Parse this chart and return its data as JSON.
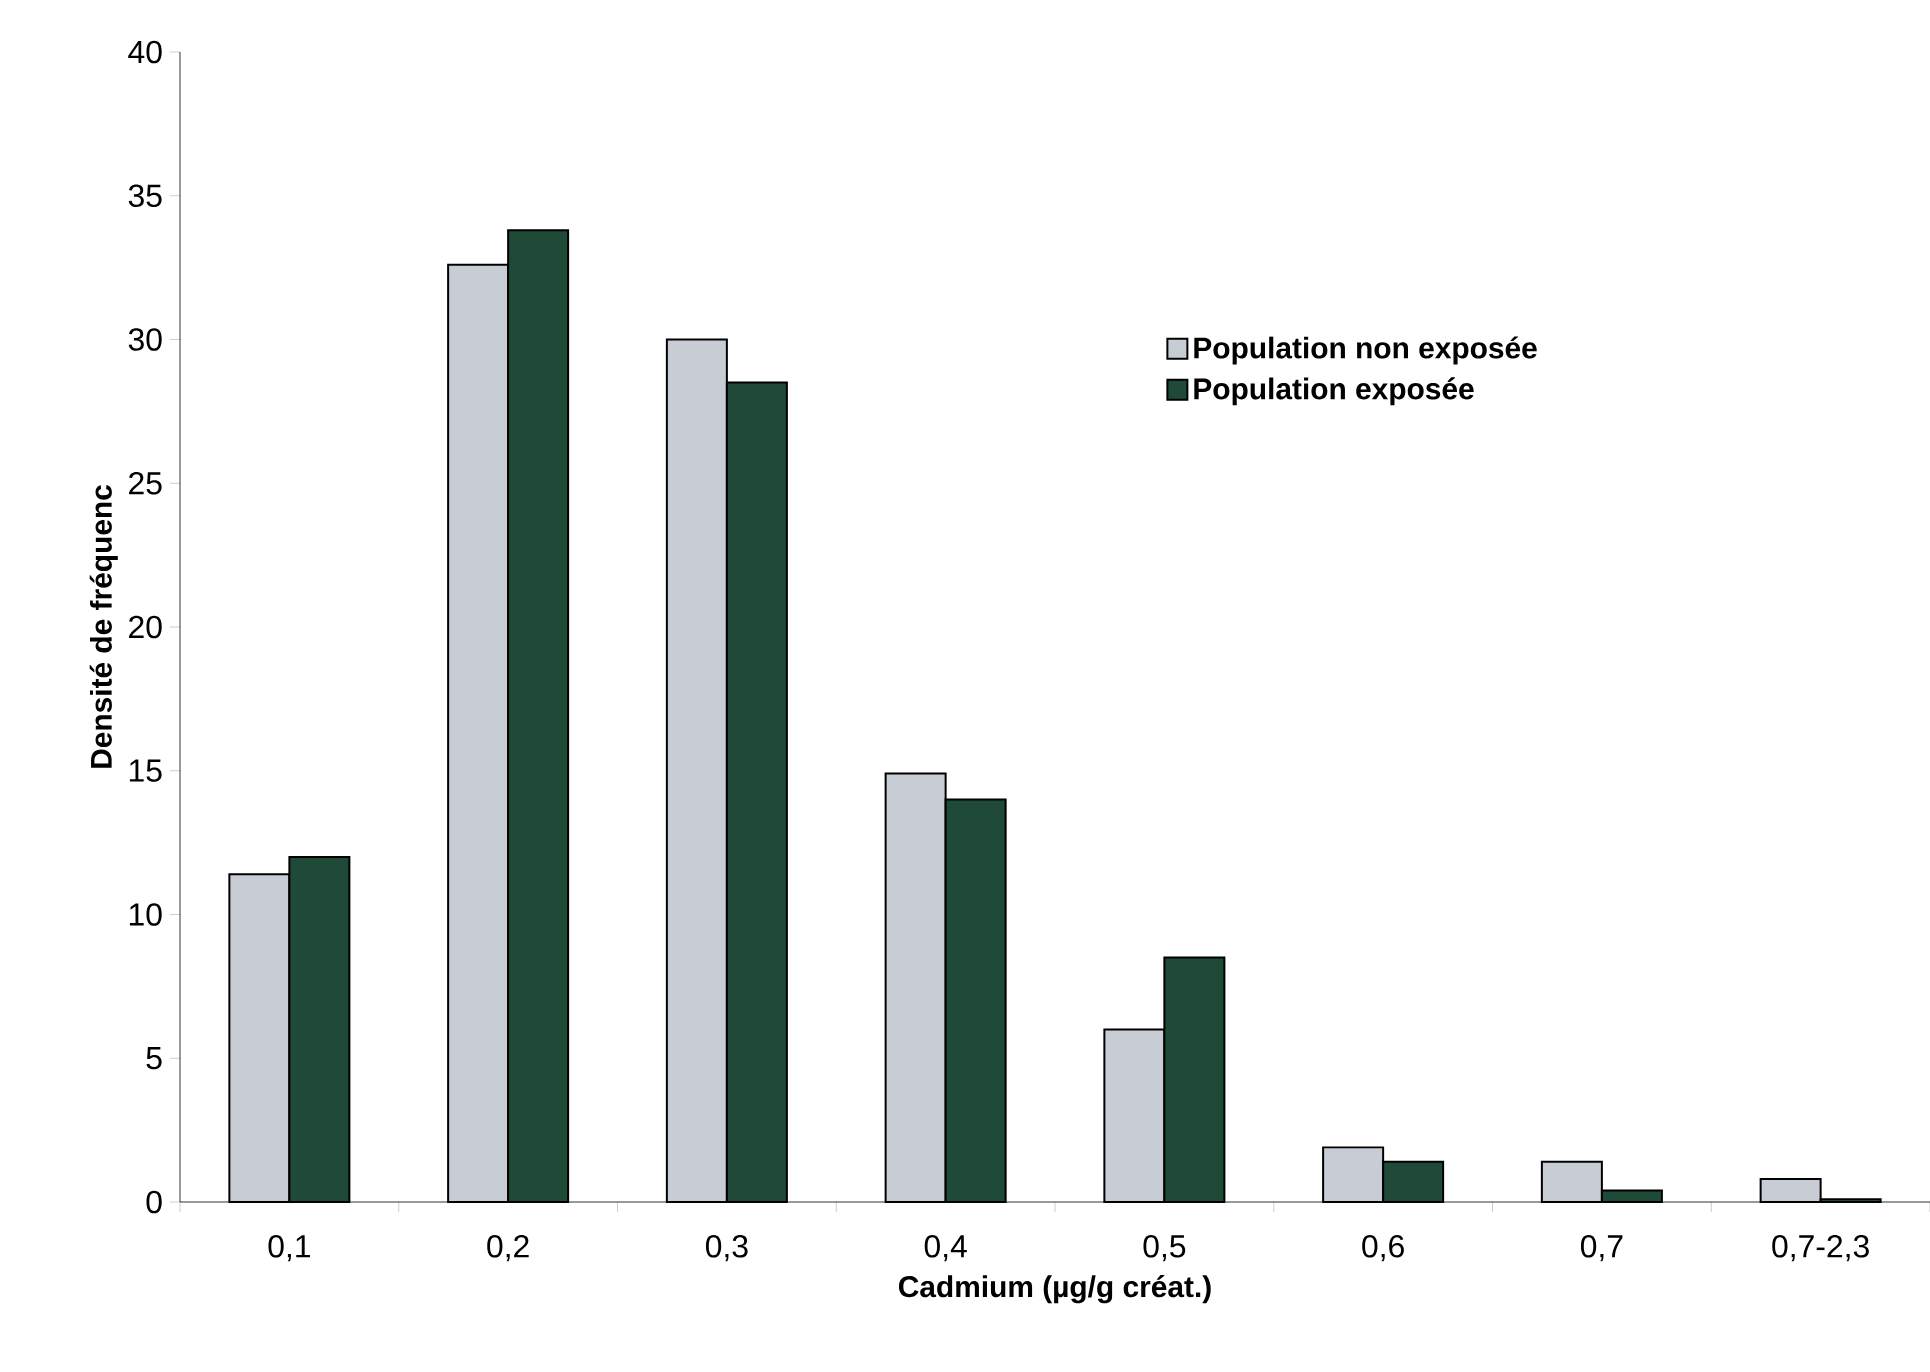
{
  "chart_data": {
    "type": "bar",
    "xlabel": "Cadmium (µg/g créat.)",
    "ylabel": "Densité de fréquenc",
    "categories": [
      "0,1",
      "0,2",
      "0,3",
      "0,4",
      "0,5",
      "0,6",
      "0,7",
      "0,7-2,3"
    ],
    "series": [
      {
        "name": "Population non exposée",
        "color": "#c8ccd4",
        "values": [
          11.4,
          32.6,
          30.0,
          14.9,
          6.0,
          1.9,
          1.4,
          0.8
        ]
      },
      {
        "name": "Population exposée",
        "color": "#1f4a38",
        "values": [
          12.0,
          33.8,
          28.5,
          14.0,
          8.5,
          1.4,
          0.4,
          0.1
        ]
      }
    ],
    "ylim": [
      0,
      40
    ],
    "yticks": [
      0,
      5,
      10,
      15,
      20,
      25,
      30,
      35,
      40
    ],
    "legend": "top right"
  }
}
